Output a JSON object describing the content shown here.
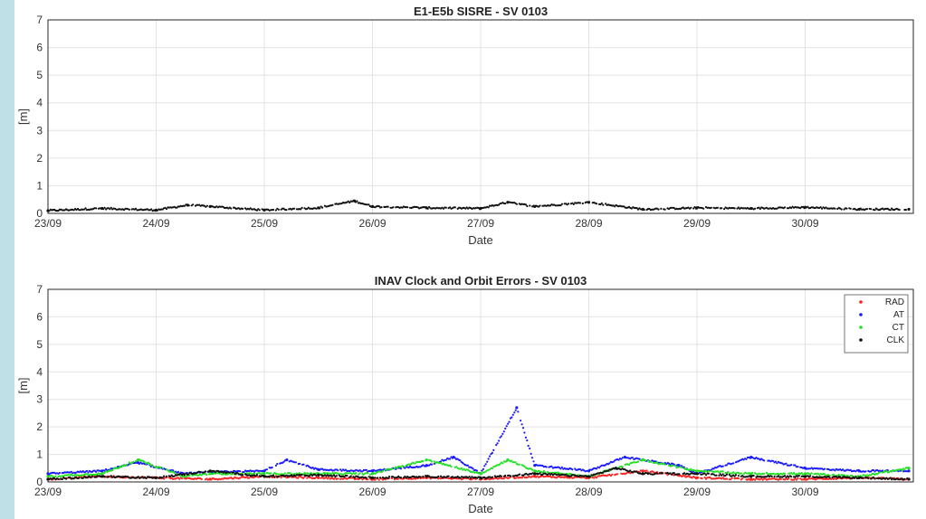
{
  "chart_data": [
    {
      "type": "scatter",
      "title": "E1-E5b SISRE - SV 0103",
      "xlabel": "Date",
      "ylabel": "[m]",
      "ylim": [
        0,
        7
      ],
      "yticks": [
        "0",
        "1",
        "2",
        "3",
        "4",
        "5",
        "6",
        "7"
      ],
      "x_ticks": [
        "23/09",
        "24/09",
        "25/09",
        "26/09",
        "27/09",
        "28/09",
        "29/09",
        "30/09"
      ],
      "xlim_days": [
        "23/09",
        "01/10"
      ],
      "grid": true,
      "series": [
        {
          "color": "#111111",
          "x": [
            "23/09 00:00",
            "23/09 12:00",
            "24/09 00:00",
            "24/09 07:00",
            "24/09 12:00",
            "25/09 00:00",
            "25/09 12:00",
            "25/09 20:00",
            "26/09 00:00",
            "26/09 12:00",
            "27/09 00:00",
            "27/09 06:00",
            "27/09 12:00",
            "28/09 00:00",
            "28/09 12:00",
            "29/09 00:00",
            "29/09 12:00",
            "30/09 00:00",
            "30/09 12:00",
            "30/09 23:00"
          ],
          "y": [
            0.1,
            0.18,
            0.12,
            0.3,
            0.25,
            0.12,
            0.2,
            0.45,
            0.25,
            0.2,
            0.18,
            0.4,
            0.25,
            0.4,
            0.15,
            0.2,
            0.18,
            0.22,
            0.15,
            0.15
          ]
        }
      ]
    },
    {
      "type": "scatter",
      "title": "INAV Clock and Orbit Errors - SV 0103",
      "xlabel": "Date",
      "ylabel": "[m]",
      "ylim": [
        0,
        7
      ],
      "yticks": [
        "0",
        "1",
        "2",
        "3",
        "4",
        "5",
        "6",
        "7"
      ],
      "x_ticks": [
        "23/09",
        "24/09",
        "25/09",
        "26/09",
        "27/09",
        "28/09",
        "29/09",
        "30/09"
      ],
      "xlim_days": [
        "23/09",
        "01/10"
      ],
      "grid": true,
      "legend": "top-right",
      "series": [
        {
          "name": "RAD",
          "color": "#ff2020",
          "x": [
            "23/09 00:00",
            "23/09 12:00",
            "24/09 00:00",
            "24/09 12:00",
            "25/09 00:00",
            "25/09 12:00",
            "26/09 00:00",
            "26/09 12:00",
            "27/09 00:00",
            "27/09 12:00",
            "28/09 00:00",
            "28/09 12:00",
            "29/09 00:00",
            "29/09 12:00",
            "30/09 00:00",
            "30/09 12:00",
            "30/09 23:00"
          ],
          "y": [
            0.1,
            0.2,
            0.15,
            0.1,
            0.2,
            0.15,
            0.1,
            0.15,
            0.1,
            0.2,
            0.15,
            0.4,
            0.15,
            0.1,
            0.1,
            0.15,
            0.1
          ]
        },
        {
          "name": "AT",
          "color": "#1a1aff",
          "x": [
            "23/09 00:00",
            "23/09 12:00",
            "23/09 20:00",
            "24/09 06:00",
            "24/09 12:00",
            "25/09 00:00",
            "25/09 05:00",
            "25/09 12:00",
            "26/09 00:00",
            "26/09 12:00",
            "26/09 18:00",
            "27/09 00:00",
            "27/09 08:00",
            "27/09 12:00",
            "28/09 00:00",
            "28/09 08:00",
            "28/09 20:00",
            "29/09 00:00",
            "29/09 12:00",
            "30/09 00:00",
            "30/09 12:00",
            "30/09 23:00"
          ],
          "y": [
            0.3,
            0.4,
            0.7,
            0.3,
            0.35,
            0.4,
            0.8,
            0.45,
            0.4,
            0.6,
            0.9,
            0.3,
            2.7,
            0.6,
            0.4,
            0.9,
            0.6,
            0.3,
            0.9,
            0.5,
            0.4,
            0.4
          ]
        },
        {
          "name": "CT",
          "color": "#22e022",
          "x": [
            "23/09 00:00",
            "23/09 12:00",
            "23/09 20:00",
            "24/09 06:00",
            "24/09 12:00",
            "25/09 00:00",
            "25/09 12:00",
            "26/09 00:00",
            "26/09 12:00",
            "27/09 00:00",
            "27/09 06:00",
            "27/09 12:00",
            "28/09 00:00",
            "28/09 12:00",
            "29/09 00:00",
            "29/09 12:00",
            "30/09 00:00",
            "30/09 12:00",
            "30/09 23:00"
          ],
          "y": [
            0.2,
            0.3,
            0.8,
            0.2,
            0.3,
            0.3,
            0.3,
            0.3,
            0.8,
            0.3,
            0.8,
            0.4,
            0.2,
            0.8,
            0.4,
            0.3,
            0.3,
            0.2,
            0.5
          ]
        },
        {
          "name": "CLK",
          "color": "#111111",
          "x": [
            "23/09 00:00",
            "23/09 12:00",
            "24/09 00:00",
            "24/09 12:00",
            "25/09 00:00",
            "25/09 12:00",
            "26/09 00:00",
            "26/09 12:00",
            "27/09 00:00",
            "27/09 12:00",
            "28/09 00:00",
            "28/09 06:00",
            "28/09 12:00",
            "29/09 00:00",
            "29/09 12:00",
            "30/09 00:00",
            "30/09 12:00",
            "30/09 23:00"
          ],
          "y": [
            0.1,
            0.2,
            0.15,
            0.4,
            0.2,
            0.25,
            0.15,
            0.2,
            0.15,
            0.3,
            0.2,
            0.5,
            0.3,
            0.3,
            0.2,
            0.2,
            0.15,
            0.1
          ]
        }
      ]
    }
  ]
}
